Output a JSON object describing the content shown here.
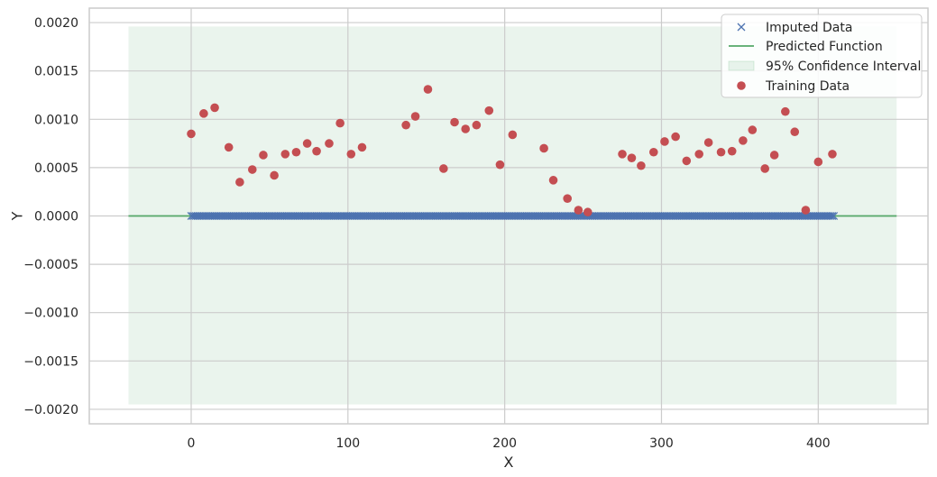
{
  "chart_data": {
    "type": "scatter",
    "xlabel": "X",
    "ylabel": "Y",
    "xlim": [
      -65,
      470
    ],
    "ylim": [
      -0.00215,
      0.00215
    ],
    "xticks": [
      0,
      100,
      200,
      300,
      400
    ],
    "yticks": [
      -0.002,
      -0.0015,
      -0.001,
      -0.0005,
      0.0,
      0.0005,
      0.001,
      0.0015,
      0.002
    ],
    "ytick_labels": [
      "−0.0020",
      "−0.0015",
      "−0.0010",
      "−0.0005",
      "0.0000",
      "0.0005",
      "0.0010",
      "0.0015",
      "0.0020"
    ],
    "grid": true,
    "legend_position": "top-right",
    "colors": {
      "imputed": "#4c72b0",
      "predicted": "#55a868",
      "confidence": "#55a868",
      "training": "#c44e52",
      "grid": "#cccccc",
      "spine": "#cccccc"
    },
    "legend": [
      {
        "label": "Imputed Data",
        "marker": "x"
      },
      {
        "label": "Predicted Function",
        "marker": "line"
      },
      {
        "label": "95% Confidence Interval",
        "marker": "band"
      },
      {
        "label": "Training Data",
        "marker": "circle"
      }
    ],
    "predicted_function": {
      "x": [
        -40,
        450
      ],
      "y": [
        0.0,
        0.0
      ]
    },
    "confidence_interval": {
      "x": [
        -40,
        450
      ],
      "lower": -0.00195,
      "upper": 0.00196
    },
    "imputed_data": {
      "x_start": 0,
      "x_end": 410,
      "x_step": 1,
      "y": 0.0
    },
    "training_data": {
      "x": [
        0,
        8,
        15,
        24,
        31,
        39,
        46,
        53,
        60,
        67,
        74,
        80,
        88,
        95,
        102,
        109,
        137,
        143,
        151,
        161,
        168,
        175,
        182,
        190,
        197,
        205,
        225,
        231,
        240,
        247,
        253,
        275,
        281,
        287,
        295,
        302,
        309,
        316,
        324,
        330,
        338,
        345,
        352,
        358,
        366,
        372,
        379,
        385,
        392,
        400,
        409
      ],
      "y": [
        0.00085,
        0.00106,
        0.00112,
        0.00071,
        0.00035,
        0.00048,
        0.00063,
        0.00042,
        0.00064,
        0.00066,
        0.00075,
        0.00067,
        0.00075,
        0.00096,
        0.00064,
        0.00071,
        0.00094,
        0.00103,
        0.00131,
        0.00049,
        0.00097,
        0.0009,
        0.00094,
        0.00109,
        0.00053,
        0.00084,
        0.0007,
        0.00037,
        0.00018,
        6e-05,
        4e-05,
        0.00064,
        0.0006,
        0.00052,
        0.00066,
        0.00077,
        0.00082,
        0.00057,
        0.00064,
        0.00076,
        0.00066,
        0.00067,
        0.00078,
        0.00089,
        0.00049,
        0.00063,
        0.00108,
        0.00087,
        6e-05,
        0.00056,
        0.00064
      ]
    }
  }
}
